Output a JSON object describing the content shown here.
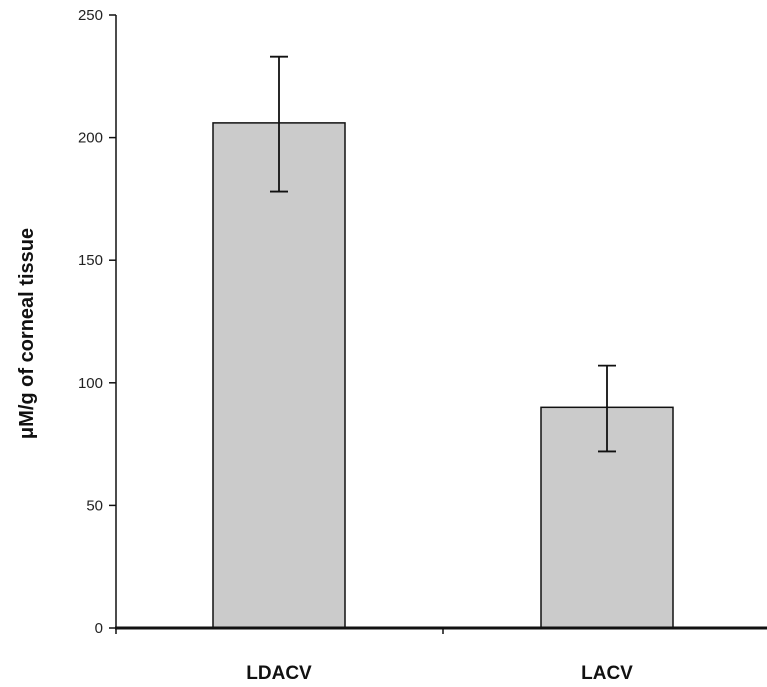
{
  "chart_data": {
    "type": "bar",
    "title": "",
    "xlabel": "",
    "ylabel": "μM/g of corneal tissue",
    "ylim": [
      0,
      250
    ],
    "yticks": [
      0,
      50,
      100,
      150,
      200,
      250
    ],
    "yticks_labels": [
      "0",
      "50",
      "100",
      "150",
      "200",
      "250"
    ],
    "categories": [
      "LDACV",
      "LACV"
    ],
    "values": [
      206,
      90
    ],
    "error_bars": [
      {
        "low": 178,
        "high": 233
      },
      {
        "low": 72,
        "high": 107
      }
    ],
    "grid": false,
    "legend": "none",
    "colors": {
      "bar_fill": "#cbcbcb",
      "bar_stroke": "#111111",
      "axis": "#111111",
      "error_bar": "#111111"
    }
  }
}
